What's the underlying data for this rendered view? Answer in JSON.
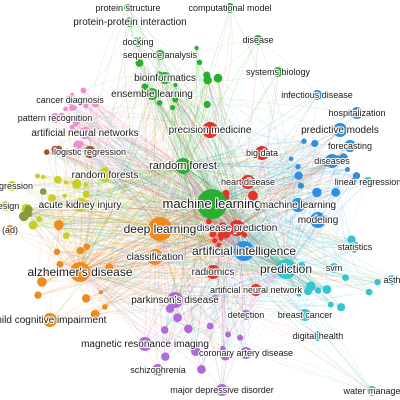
{
  "cluster_colors": {
    "green": "#27b02d",
    "blue": "#2f8fe0",
    "cyan": "#35c4d2",
    "red": "#e5322b",
    "orange": "#f08a1c",
    "yellow": "#c9cf1e",
    "purple": "#b06ad8",
    "pink": "#ef8fd0",
    "brown": "#9a5a3a",
    "olive": "#8a9a3a"
  },
  "nodes": [
    {
      "id": "protein-structure",
      "label": "protein structure",
      "cluster": "green"
    },
    {
      "id": "protein-protein-interaction",
      "label": "protein-protein interaction",
      "cluster": "green"
    },
    {
      "id": "computational-model",
      "label": "computational model",
      "cluster": "green"
    },
    {
      "id": "docking",
      "label": "docking",
      "cluster": "green"
    },
    {
      "id": "disease",
      "label": "disease",
      "cluster": "green"
    },
    {
      "id": "sequence-analysis",
      "label": "sequence analysis",
      "cluster": "green"
    },
    {
      "id": "bioinformatics",
      "label": "bioinformatics",
      "cluster": "green"
    },
    {
      "id": "systems-biology",
      "label": "systems biology",
      "cluster": "green"
    },
    {
      "id": "ensemble-learning",
      "label": "ensemble learning",
      "cluster": "green"
    },
    {
      "id": "cancer-diagnosis",
      "label": "cancer diagnosis",
      "cluster": "pink"
    },
    {
      "id": "infectious-disease",
      "label": "infectious disease",
      "cluster": "blue"
    },
    {
      "id": "pattern-recognition",
      "label": "pattern recognition",
      "cluster": "pink"
    },
    {
      "id": "hospitalization",
      "label": "hospitalization",
      "cluster": "blue"
    },
    {
      "id": "artificial-neural-networks",
      "label": "artificial neural networks",
      "cluster": "pink"
    },
    {
      "id": "predictive-models",
      "label": "predictive models",
      "cluster": "blue"
    },
    {
      "id": "precision-medicine",
      "label": "precision medicine",
      "cluster": "red"
    },
    {
      "id": "forecasting",
      "label": "forecasting",
      "cluster": "blue"
    },
    {
      "id": "logistic-regression",
      "label": "logistic regression",
      "cluster": "brown"
    },
    {
      "id": "diseases",
      "label": "diseases",
      "cluster": "blue"
    },
    {
      "id": "random-forest",
      "label": "random forest",
      "cluster": "green"
    },
    {
      "id": "big-data",
      "label": "big data",
      "cluster": "red"
    },
    {
      "id": "linear-regression",
      "label": "linear regression",
      "cluster": "cyan"
    },
    {
      "id": "heart-disease",
      "label": "heart disease",
      "cluster": "red"
    },
    {
      "id": "random-forests",
      "label": "random forests",
      "cluster": "yellow"
    },
    {
      "id": "regression",
      "label": "regression",
      "cluster": "yellow"
    },
    {
      "id": "machine-learning",
      "label": "machine learning",
      "cluster": "green"
    },
    {
      "id": "machine-learning-2",
      "label": "machine learning",
      "cluster": "blue"
    },
    {
      "id": "design",
      "label": "design",
      "cluster": "yellow"
    },
    {
      "id": "acute-kidney-injury",
      "label": "acute kidney injury",
      "cluster": "yellow"
    },
    {
      "id": "modeling",
      "label": "modeling",
      "cluster": "blue"
    },
    {
      "id": "deep-learning",
      "label": "deep learning",
      "cluster": "orange"
    },
    {
      "id": "disease-prediction",
      "label": "disease prediction",
      "cluster": "red"
    },
    {
      "id": "ad",
      "label": "(ad)",
      "cluster": "orange"
    },
    {
      "id": "artificial-intelligence",
      "label": "artificial intelligence",
      "cluster": "blue"
    },
    {
      "id": "statistics",
      "label": "statistics",
      "cluster": "cyan"
    },
    {
      "id": "classification",
      "label": "classification",
      "cluster": "orange"
    },
    {
      "id": "radiomics",
      "label": "radiomics",
      "cluster": "red"
    },
    {
      "id": "prediction",
      "label": "prediction",
      "cluster": "cyan"
    },
    {
      "id": "svm",
      "label": "svm",
      "cluster": "cyan"
    },
    {
      "id": "alzheimers-disease",
      "label": "alzheimer's disease",
      "cluster": "orange"
    },
    {
      "id": "artificial-neural-network",
      "label": "artificial neural network",
      "cluster": "red"
    },
    {
      "id": "asthma",
      "label": "asth",
      "cluster": "cyan"
    },
    {
      "id": "parkinsons-disease",
      "label": "parkinson's disease",
      "cluster": "purple"
    },
    {
      "id": "detection",
      "label": "detection",
      "cluster": "purple"
    },
    {
      "id": "breast-cancer",
      "label": "breast cancer",
      "cluster": "cyan"
    },
    {
      "id": "mild-cognitive-impairment",
      "label": "mild cognitive impairment",
      "cluster": "orange"
    },
    {
      "id": "digital-health",
      "label": "digital health",
      "cluster": "cyan"
    },
    {
      "id": "magnetic-resonance-imaging",
      "label": "magnetic resonance imaging",
      "cluster": "purple"
    },
    {
      "id": "coronary-artery-disease",
      "label": "coronary artery disease",
      "cluster": "purple"
    },
    {
      "id": "schizophrenia",
      "label": "schizophrenia",
      "cluster": "purple"
    },
    {
      "id": "major-depressive-disorder",
      "label": "major depressive disorder",
      "cluster": "purple"
    },
    {
      "id": "water-management",
      "label": "water manage",
      "cluster": "cyan"
    }
  ]
}
